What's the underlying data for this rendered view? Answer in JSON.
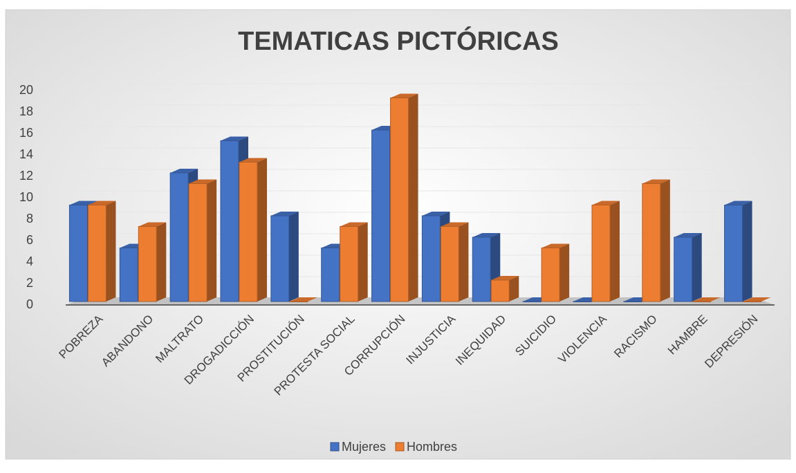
{
  "chart_data": {
    "type": "bar3d",
    "title": "TEMATICAS PICTÓRICAS",
    "categories": [
      "POBREZA",
      "ABANDONO",
      "MALTRATO",
      "DROGADICCIÓN",
      "PROSTITUCIÓN",
      "PROTESTA SOCIAL",
      "CORRUPCIÓN",
      "INJUSTICIA",
      "INEQUIDAD",
      "SUICIDIO",
      "VIOLENCIA",
      "RACISMO",
      "HAMBRE",
      "DEPRESIÓN"
    ],
    "series": [
      {
        "name": "Mujeres",
        "color": "#4472c4",
        "values": [
          9,
          5,
          12,
          15,
          8,
          5,
          16,
          8,
          6,
          0,
          0,
          0,
          6,
          9
        ]
      },
      {
        "name": "Hombres",
        "color": "#ed7d31",
        "values": [
          9,
          7,
          11,
          13,
          0,
          7,
          19,
          7,
          2,
          5,
          9,
          11,
          0,
          0
        ]
      }
    ],
    "ylim": [
      0,
      20
    ],
    "yticks": [
      0,
      2,
      4,
      6,
      8,
      10,
      12,
      14,
      16,
      18,
      20
    ],
    "grid": true,
    "legend": "bottom"
  }
}
